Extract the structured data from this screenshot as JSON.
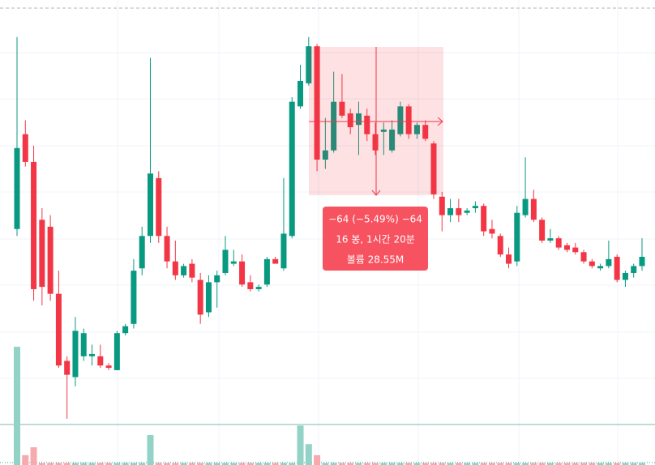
{
  "chart_data": {
    "type": "candlestick",
    "up_color": "#089981",
    "down_color": "#f23645",
    "volume_up_color": "#92d2c7",
    "volume_down_color": "#f8a9ad",
    "ylim": [
      985,
      1186
    ],
    "vlim": [
      0,
      118
    ],
    "candles": [
      [
        1087,
        1170,
        1084,
        1122
      ],
      [
        1128,
        1134,
        1114,
        1116
      ],
      [
        1116,
        1123,
        1056,
        1061
      ],
      [
        1091,
        1096,
        1054,
        1062
      ],
      [
        1088,
        1093,
        1056,
        1059
      ],
      [
        1059,
        1069,
        1027,
        1028
      ],
      [
        1030,
        1032,
        1005,
        1024
      ],
      [
        1023,
        1049,
        1019,
        1043
      ],
      [
        1032,
        1044,
        1030,
        1042
      ],
      [
        1032,
        1037,
        1028,
        1033
      ],
      [
        1032,
        1037,
        1027,
        1028
      ],
      [
        1028,
        1029,
        1026,
        1027
      ],
      [
        1026,
        1043,
        1026,
        1042
      ],
      [
        1042,
        1046,
        1041,
        1045
      ],
      [
        1046,
        1074,
        1044,
        1069
      ],
      [
        1070,
        1088,
        1067,
        1084
      ],
      [
        1084,
        1161,
        1081,
        1111
      ],
      [
        1109,
        1112,
        1081,
        1084
      ],
      [
        1084,
        1088,
        1070,
        1073
      ],
      [
        1073,
        1082,
        1065,
        1067
      ],
      [
        1067,
        1072,
        1066,
        1071
      ],
      [
        1072,
        1074,
        1064,
        1066
      ],
      [
        1065,
        1068,
        1046,
        1050
      ],
      [
        1051,
        1067,
        1049,
        1064
      ],
      [
        1064,
        1069,
        1053,
        1067
      ],
      [
        1068,
        1084,
        1067,
        1078
      ],
      [
        1072,
        1078,
        1071,
        1073
      ],
      [
        1073,
        1076,
        1062,
        1063
      ],
      [
        1064,
        1067,
        1060,
        1061
      ],
      [
        1061,
        1063,
        1060,
        1062
      ],
      [
        1063,
        1075,
        1062,
        1074
      ],
      [
        1074,
        1075,
        1072,
        1072
      ],
      [
        1070,
        1109,
        1069,
        1085
      ],
      [
        1084,
        1144,
        1083,
        1142
      ],
      [
        1140,
        1158,
        1139,
        1151
      ],
      [
        1150,
        1170,
        1149,
        1166
      ],
      [
        1166,
        1167,
        1112,
        1117
      ],
      [
        1117,
        1135,
        1113,
        1121
      ],
      [
        1121,
        1155,
        1120,
        1142
      ],
      [
        1142,
        1154,
        1135,
        1136
      ],
      [
        1137,
        1139,
        1128,
        1131
      ],
      [
        1132,
        1142,
        1119,
        1137
      ],
      [
        1136,
        1139,
        1125,
        1128
      ],
      [
        1128,
        1133,
        1119,
        1121
      ],
      [
        1129,
        1133,
        1119,
        1130
      ],
      [
        1121,
        1134,
        1120,
        1130
      ],
      [
        1128,
        1142,
        1127,
        1140
      ],
      [
        1140,
        1141,
        1126,
        1128
      ],
      [
        1128,
        1133,
        1126,
        1132
      ],
      [
        1132,
        1134,
        1125,
        1126
      ],
      [
        1124,
        1125,
        1100,
        1102
      ],
      [
        1101,
        1103,
        1086,
        1093
      ],
      [
        1093,
        1100,
        1090,
        1096
      ],
      [
        1096,
        1100,
        1090,
        1093
      ],
      [
        1094,
        1096,
        1093,
        1095
      ],
      [
        1096,
        1099,
        1094,
        1097
      ],
      [
        1097,
        1098,
        1084,
        1086
      ],
      [
        1087,
        1091,
        1083,
        1085
      ],
      [
        1084,
        1085,
        1075,
        1076
      ],
      [
        1076,
        1079,
        1070,
        1072
      ],
      [
        1073,
        1097,
        1071,
        1094
      ],
      [
        1093,
        1118,
        1092,
        1100
      ],
      [
        1100,
        1104,
        1090,
        1091
      ],
      [
        1091,
        1092,
        1081,
        1082
      ],
      [
        1082,
        1087,
        1081,
        1083
      ],
      [
        1083,
        1084,
        1078,
        1079
      ],
      [
        1080,
        1081,
        1077,
        1078
      ],
      [
        1079,
        1081,
        1076,
        1077
      ],
      [
        1077,
        1078,
        1072,
        1073
      ],
      [
        1073,
        1074,
        1070,
        1071
      ],
      [
        1070,
        1072,
        1069,
        1071
      ],
      [
        1071,
        1082,
        1070,
        1074
      ],
      [
        1075,
        1076,
        1064,
        1065
      ],
      [
        1065,
        1069,
        1062,
        1068
      ],
      [
        1068,
        1072,
        1066,
        1071
      ],
      [
        1071,
        1083,
        1069,
        1075
      ]
    ],
    "volume": [
      30,
      2.5,
      4.5,
      0.5,
      0.5,
      0.5,
      0.5,
      0.5,
      0.5,
      0.5,
      0.5,
      0.5,
      0.5,
      0.5,
      0.5,
      0.5,
      7.6,
      0.5,
      0.5,
      0.5,
      0.5,
      0.5,
      0.5,
      0.5,
      0.5,
      0.5,
      0.5,
      0.5,
      0.5,
      0.5,
      0.5,
      0.5,
      0.5,
      0.5,
      10,
      5.3,
      2.5,
      0.5,
      0.5,
      0.5,
      0.5,
      0.5,
      0.5,
      0.5,
      0.5,
      0.5,
      0.5,
      0.5,
      0.5,
      0.5,
      0.5,
      0.5,
      0.5,
      0.5,
      0.5,
      0.5,
      0.5,
      0.5,
      0.5,
      0.5,
      0.5,
      0.5,
      0.5,
      0.5,
      0.5,
      0.5,
      0.5,
      0.5,
      0.5,
      0.5,
      0.5,
      0.5,
      0.5,
      0.5,
      0.5,
      0.5
    ],
    "measure": {
      "change": "−64 (−5.49%) −64",
      "span": "16 봉, 1시간 20분",
      "volume": "볼륨 28.55M"
    }
  }
}
